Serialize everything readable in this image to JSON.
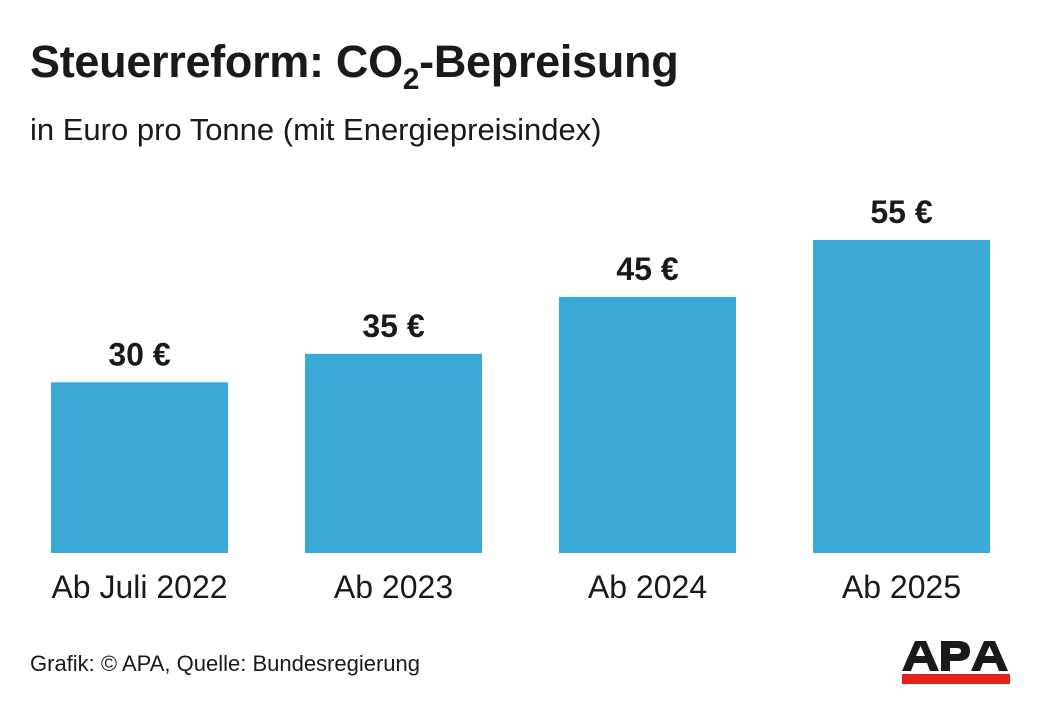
{
  "title_main": "Steuerreform: CO",
  "title_sub": "2",
  "title_end": "-Bepreisung",
  "subtitle": "in Euro pro Tonne (mit Energiepreisindex)",
  "footer": "Grafik: © APA, Quelle: Bundesregierung",
  "logo_text": "APA",
  "colors": {
    "bar": "#3aa9d6",
    "text": "#1a1a1a",
    "logo_red": "#e2231a"
  },
  "chart_data": {
    "type": "bar",
    "title": "Steuerreform: CO2-Bepreisung",
    "subtitle": "in Euro pro Tonne (mit Energiepreisindex)",
    "categories": [
      "Ab Juli 2022",
      "Ab 2023",
      "Ab 2024",
      "Ab 2025"
    ],
    "values": [
      30,
      35,
      45,
      55
    ],
    "data_labels": [
      "30 €",
      "35 €",
      "45 €",
      "55 €"
    ],
    "unit": "€",
    "ylim": [
      0,
      55
    ],
    "grid": false,
    "legend": "none"
  }
}
